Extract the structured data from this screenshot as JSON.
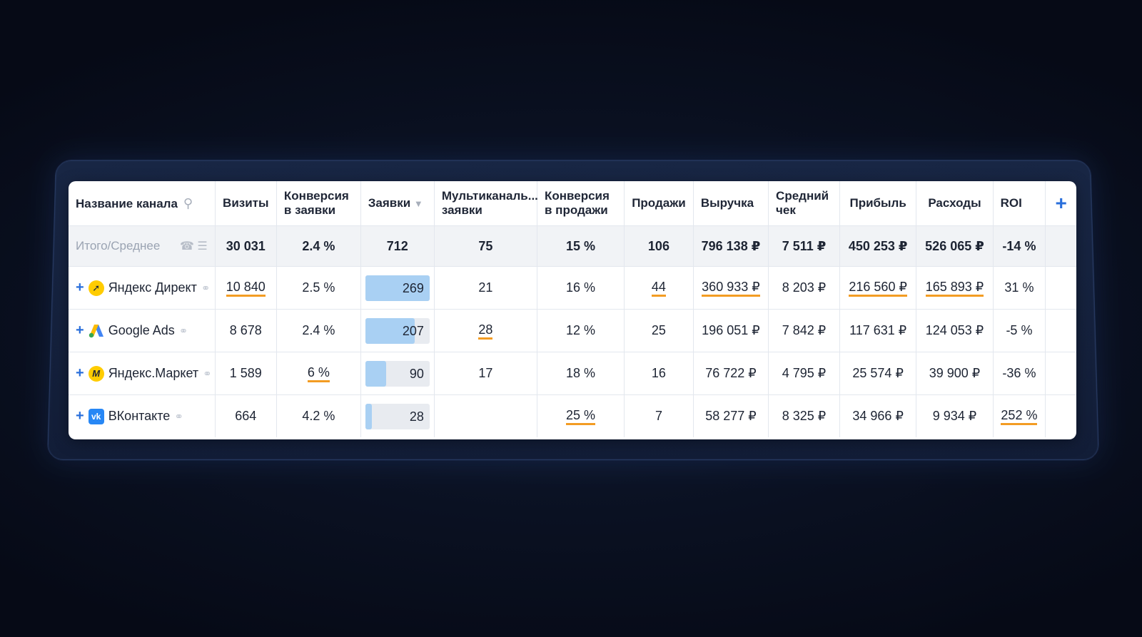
{
  "header": {
    "channel_name": "Название канала",
    "visits": "Визиты",
    "conv_leads": "Конверсия в заявки",
    "leads": "Заявки",
    "multichannel": "Мультиканаль... заявки",
    "conv_sales": "Конверсия в продажи",
    "sales": "Продажи",
    "revenue": "Выручка",
    "avg_check": "Средний чек",
    "profit": "Прибыль",
    "expenses": "Расходы",
    "roi": "ROI",
    "add_column": "+"
  },
  "total": {
    "label": "Итого/Среднее",
    "visits": "30 031",
    "conv_leads": "2.4 %",
    "leads": "712",
    "multichannel": "75",
    "conv_sales": "15 %",
    "sales": "106",
    "revenue": "796 138 ₽",
    "avg_check": "7 511 ₽",
    "profit": "450 253 ₽",
    "expenses": "526 065 ₽",
    "roi": "-14 %"
  },
  "rows": [
    {
      "name": "Яндекс Директ",
      "visits": "10 840",
      "conv_leads": "2.5 %",
      "leads": "269",
      "leads_fraction": 1.0,
      "multichannel": "21",
      "conv_sales": "16 %",
      "sales": "44",
      "revenue": "360 933 ₽",
      "avg_check": "8 203 ₽",
      "profit": "216 560 ₽",
      "expenses": "165 893 ₽",
      "roi": "31 %"
    },
    {
      "name": "Google Ads",
      "visits": "8 678",
      "conv_leads": "2.4 %",
      "leads": "207",
      "leads_fraction": 0.77,
      "multichannel": "28",
      "conv_sales": "12 %",
      "sales": "25",
      "revenue": "196 051 ₽",
      "avg_check": "7 842 ₽",
      "profit": "117 631 ₽",
      "expenses": "124 053 ₽",
      "roi": "-5 %"
    },
    {
      "name": "Яндекс.Маркет",
      "visits": "1 589",
      "conv_leads": "6 %",
      "leads": "90",
      "leads_fraction": 0.33,
      "multichannel": "17",
      "conv_sales": "18 %",
      "sales": "16",
      "revenue": "76 722 ₽",
      "avg_check": "4 795 ₽",
      "profit": "25 574 ₽",
      "expenses": "39 900 ₽",
      "roi": "-36 %"
    },
    {
      "name": "ВКонтакте",
      "visits": "664",
      "conv_leads": "4.2 %",
      "leads": "28",
      "leads_fraction": 0.1,
      "multichannel": "",
      "conv_sales": "25 %",
      "sales": "7",
      "revenue": "58 277 ₽",
      "avg_check": "8 325 ₽",
      "profit": "34 966 ₽",
      "expenses": "9 934 ₽",
      "roi": "252 %"
    }
  ],
  "colors": {
    "accent": "#2a6fdb",
    "underline": "#f39c23",
    "bar": "#a9d0f3"
  }
}
